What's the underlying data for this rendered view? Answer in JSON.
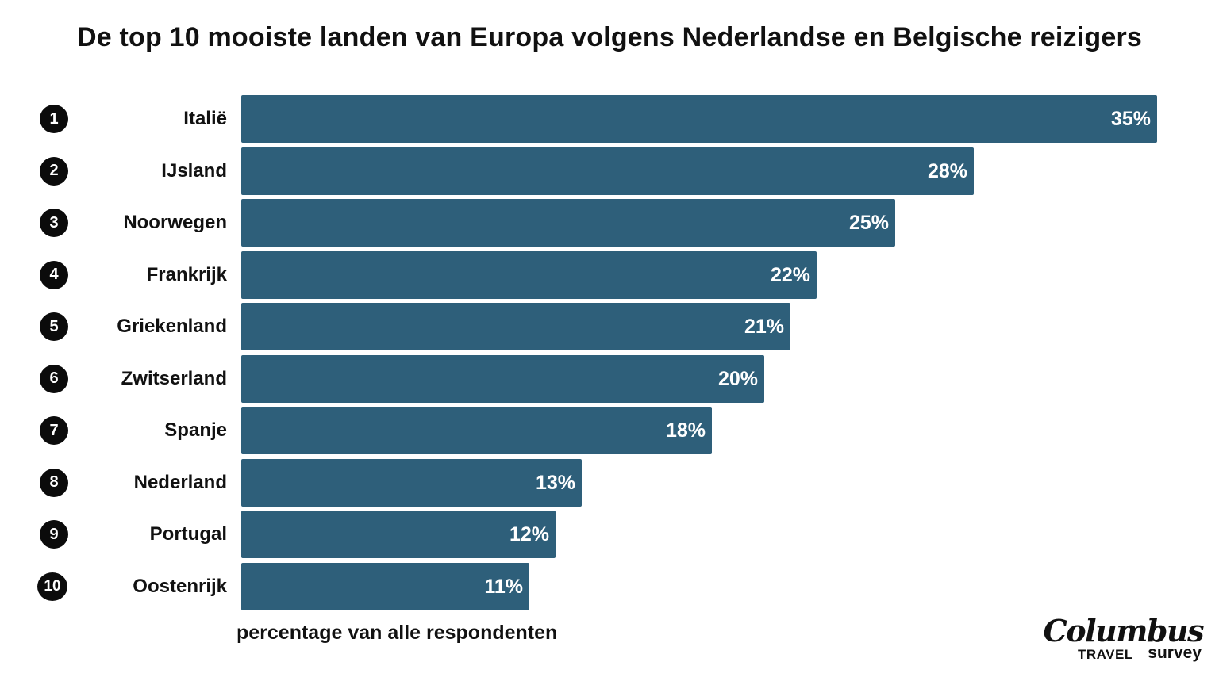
{
  "chart_data": {
    "type": "bar",
    "orientation": "horizontal",
    "title": "De top 10 mooiste landen van Europa volgens Nederlandse en Belgische reizigers",
    "xlabel": "percentage van alle respondenten",
    "ylabel": "",
    "ranks": [
      "1",
      "2",
      "3",
      "4",
      "5",
      "6",
      "7",
      "8",
      "9",
      "10"
    ],
    "categories": [
      "Italië",
      "IJsland",
      "Noorwegen",
      "Frankrijk",
      "Griekenland",
      "Zwitserland",
      "Spanje",
      "Nederland",
      "Portugal",
      "Oostenrijk"
    ],
    "values": [
      35,
      28,
      25,
      22,
      21,
      20,
      18,
      13,
      12,
      11
    ],
    "value_labels": [
      "35%",
      "28%",
      "25%",
      "22%",
      "21%",
      "20%",
      "18%",
      "13%",
      "12%",
      "11%"
    ],
    "xlim": [
      0,
      35
    ],
    "grid": false,
    "legend": "none",
    "bar_color": "#2e5f7a"
  },
  "logo": {
    "main": "Columbus",
    "travel": "TRAVEL",
    "survey": "survey"
  }
}
